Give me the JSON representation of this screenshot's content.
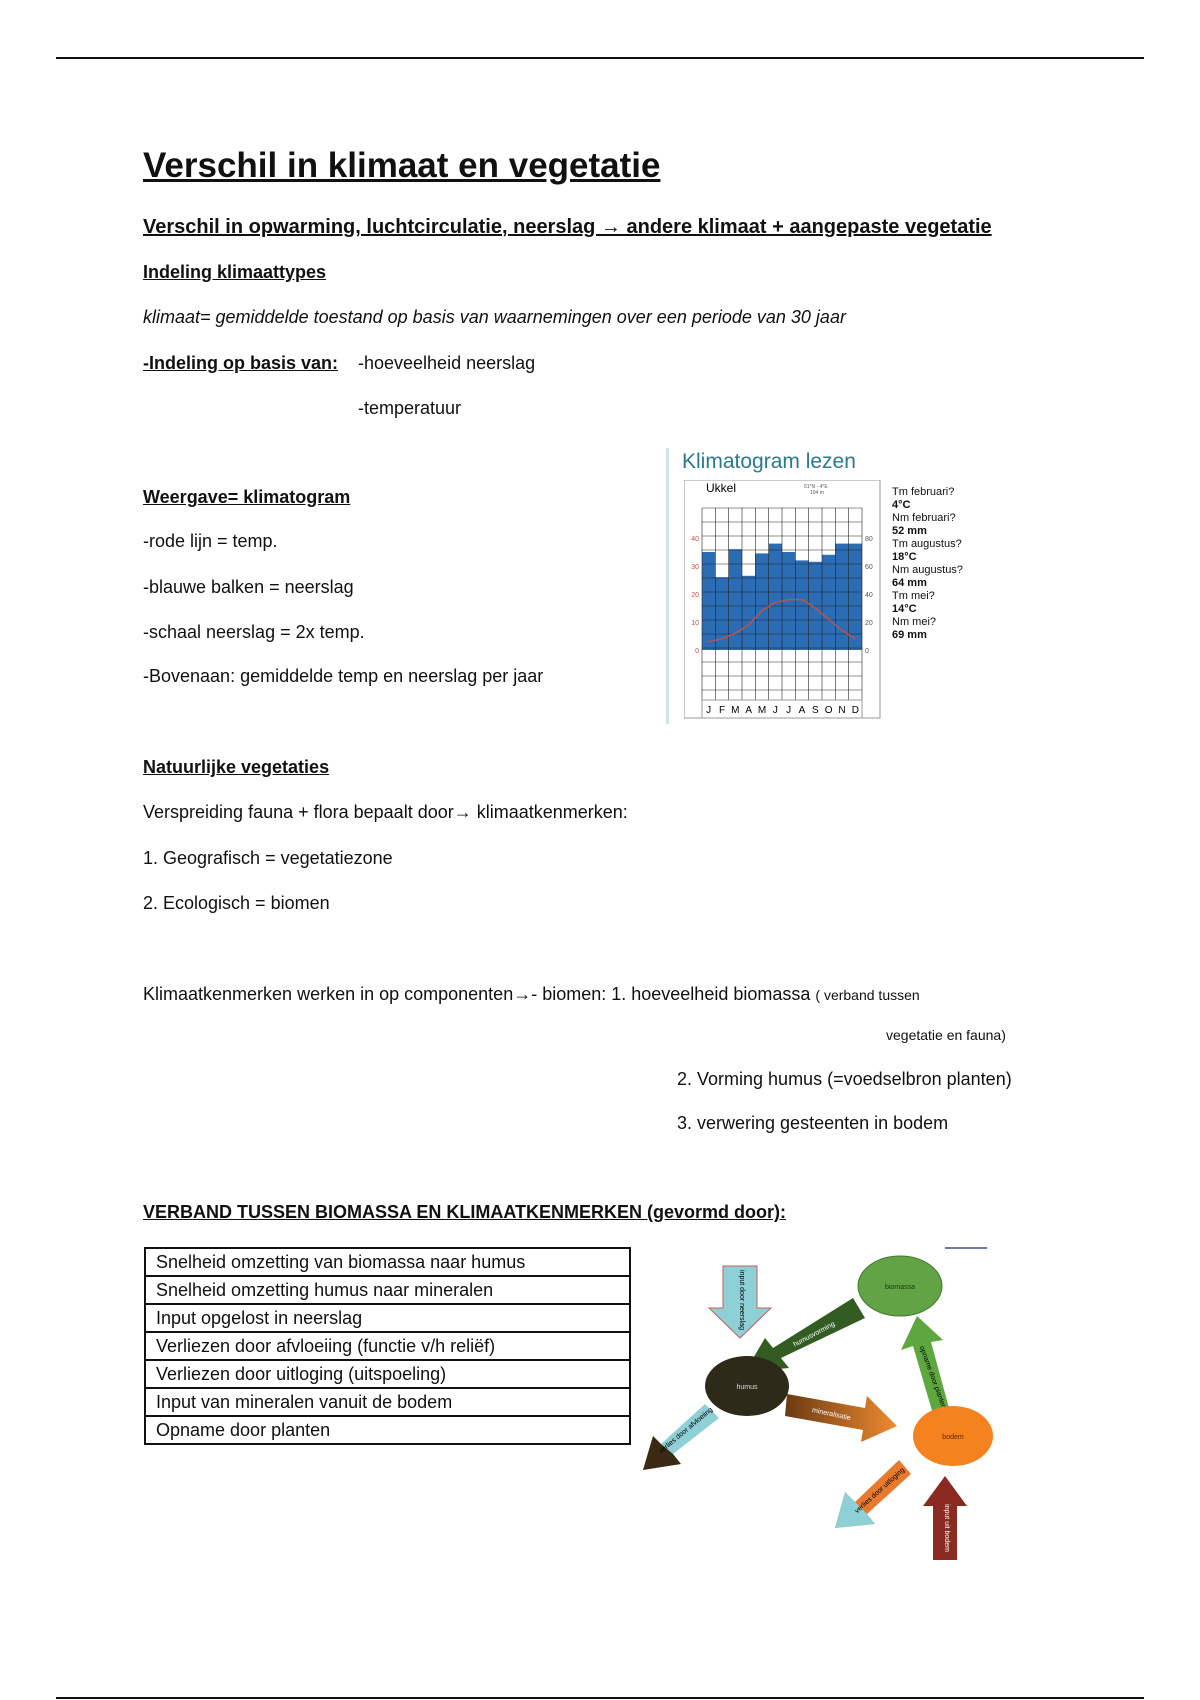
{
  "title": "Verschil in klimaat en vegetatie",
  "subtitle": "Verschil in opwarming, luchtcirculatie, neerslag → andere klimaat + aangepaste vegetatie",
  "indeling_heading": "Indeling klimaattypes",
  "klimaat_def": "klimaat= gemiddelde toestand op basis van waarnemingen over een periode van 30 jaar",
  "indeling_basis_label": "-Indeling op basis van:",
  "indeling_items": [
    "-hoeveelheid neerslag",
    "-temperatuur"
  ],
  "weergave_heading": "Weergave= klimatogram",
  "weergave_items": [
    "-rode lijn = temp.",
    "-blauwe balken = neerslag",
    "-schaal neerslag = 2x temp.",
    "-Bovenaan: gemiddelde temp en neerslag per jaar"
  ],
  "klimatogram": {
    "title": "Klimatogram lezen",
    "station": "Ukkel",
    "station_info": "51°N - 4°E",
    "station_info2": "104 m",
    "months": [
      "J",
      "F",
      "M",
      "A",
      "M",
      "J",
      "J",
      "A",
      "S",
      "O",
      "N",
      "D"
    ],
    "temp_ticks": [
      "0",
      "10",
      "20",
      "30",
      "40"
    ],
    "precip_ticks": [
      "0",
      "20",
      "40",
      "60",
      "80"
    ],
    "temperature_c": [
      3,
      4,
      6,
      9,
      14,
      17,
      18,
      18,
      15,
      11,
      7,
      4
    ],
    "precipitation_mm": [
      70,
      52,
      72,
      53,
      69,
      76,
      70,
      64,
      63,
      68,
      76,
      76
    ],
    "colors": {
      "bars": "#2a6db5",
      "line": "#c0504d",
      "title": "#2a7a8c"
    },
    "qa": [
      [
        "Tm februari?",
        "4°C"
      ],
      [
        "Nm februari?",
        "52 mm"
      ],
      [
        "Tm augustus?",
        "18°C"
      ],
      [
        "Nm augustus?",
        "64 mm"
      ],
      [
        "Tm mei?",
        "14°C"
      ],
      [
        "Nm mei?",
        "69 mm"
      ]
    ]
  },
  "natuur_heading": "Natuurlijke vegetaties",
  "natuur_lines": [
    "Verspreiding fauna + flora bepaalt door→ klimaatkenmerken:",
    "1. Geografisch = vegetatiezone",
    "2. Ecologisch = biomen"
  ],
  "componenten": {
    "lead": "Klimaatkenmerken werken in op componenten→- biomen: 1. hoeveelheid biomassa",
    "small1": "( verband tussen",
    "small2": "vegetatie en fauna)",
    "item2": "2. Vorming humus (=voedselbron planten)",
    "item3": "3. verwering gesteenten in bodem"
  },
  "verband_heading": "VERBAND TUSSEN BIOMASSA EN KLIMAATKENMERKEN (gevormd door):",
  "verband_rows": [
    "Snelheid omzetting van biomassa naar humus",
    "Snelheid omzetting humus naar mineralen",
    "Input opgelost in neerslag",
    "Verliezen door afvloeiing (functie v/h reliëf)",
    "Verliezen door uitloging (uitspoeling)",
    "Input van mineralen vanuit de bodem",
    "Opname door planten"
  ],
  "diagram": {
    "biomassa": "biomassa",
    "humus": "humus",
    "bodem": "bodem",
    "input_neerslag": "input door neerslag",
    "humusvorming": "humusvorming",
    "mineralisatie": "mineralisatie",
    "opname": "opname door planten",
    "afvloeiing": "verlies door afvloeiing",
    "uitloging": "verlies door uitloging",
    "input_bodem": "input uit bodem"
  }
}
